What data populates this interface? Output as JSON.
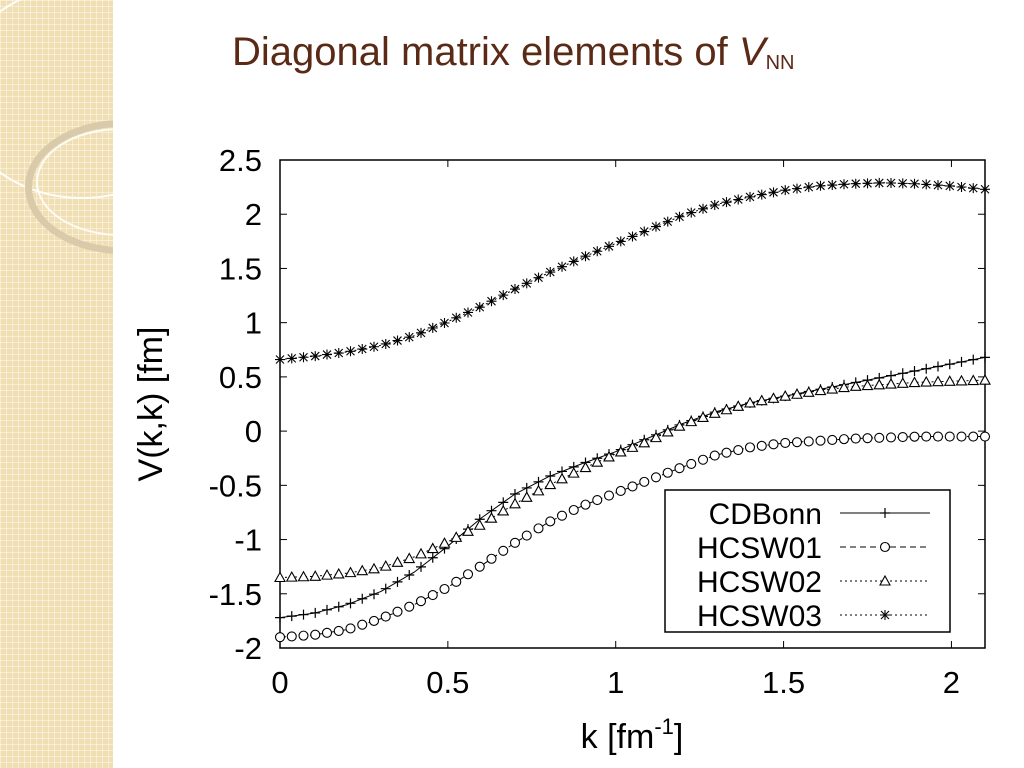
{
  "slide": {
    "title_prefix": "Diagonal matrix elements of ",
    "title_var": "V",
    "title_sub": "NN"
  },
  "chart_data": {
    "type": "line",
    "xlabel_main": "k [fm",
    "xlabel_sup": "-1",
    "xlabel_end": "]",
    "ylabel": "V(k,k) [fm]",
    "xlim": [
      0,
      2.1
    ],
    "ylim": [
      -2,
      2.5
    ],
    "xticks": [
      0,
      0.5,
      1,
      1.5,
      2
    ],
    "xtick_labels": [
      "0",
      "0.5",
      "1",
      "1.5",
      "2"
    ],
    "yticks": [
      2.5,
      2,
      1.5,
      1,
      0.5,
      0,
      -0.5,
      -1,
      -1.5,
      -2
    ],
    "ytick_labels": [
      "2.5",
      "2",
      "1.5",
      "1",
      "0.5",
      "0",
      "-0.5",
      "-1",
      "-1.5",
      "-2"
    ],
    "legend_position": "bottom-right",
    "series": [
      {
        "name": "CDBonn",
        "marker": "plus",
        "line": "solid",
        "x": [
          0,
          0.1,
          0.2,
          0.3,
          0.4,
          0.5,
          0.6,
          0.7,
          0.8,
          0.9,
          1.0,
          1.1,
          1.2,
          1.3,
          1.4,
          1.5,
          1.6,
          1.7,
          1.8,
          1.9,
          2.0,
          2.1
        ],
        "y": [
          -1.72,
          -1.68,
          -1.6,
          -1.48,
          -1.3,
          -1.06,
          -0.8,
          -0.58,
          -0.42,
          -0.3,
          -0.19,
          -0.06,
          0.07,
          0.18,
          0.26,
          0.32,
          0.38,
          0.44,
          0.5,
          0.56,
          0.62,
          0.68
        ]
      },
      {
        "name": "HCSW01",
        "marker": "circle",
        "line": "dashed",
        "x": [
          0,
          0.1,
          0.2,
          0.3,
          0.4,
          0.5,
          0.6,
          0.7,
          0.8,
          0.9,
          1.0,
          1.1,
          1.2,
          1.3,
          1.4,
          1.5,
          1.6,
          1.7,
          1.8,
          1.9,
          2.0,
          2.1
        ],
        "y": [
          -1.9,
          -1.88,
          -1.83,
          -1.73,
          -1.6,
          -1.44,
          -1.24,
          -1.03,
          -0.84,
          -0.69,
          -0.57,
          -0.45,
          -0.33,
          -0.22,
          -0.15,
          -0.11,
          -0.09,
          -0.07,
          -0.06,
          -0.05,
          -0.05,
          -0.05
        ]
      },
      {
        "name": "HCSW02",
        "marker": "triangle",
        "line": "dotted",
        "x": [
          0,
          0.1,
          0.2,
          0.3,
          0.4,
          0.5,
          0.6,
          0.7,
          0.8,
          0.9,
          1.0,
          1.1,
          1.2,
          1.3,
          1.4,
          1.5,
          1.6,
          1.7,
          1.8,
          1.9,
          2.0,
          2.1
        ],
        "y": [
          -1.35,
          -1.34,
          -1.31,
          -1.26,
          -1.16,
          -1.02,
          -0.86,
          -0.67,
          -0.5,
          -0.35,
          -0.21,
          -0.09,
          0.06,
          0.17,
          0.26,
          0.32,
          0.37,
          0.41,
          0.43,
          0.45,
          0.46,
          0.47
        ]
      },
      {
        "name": "HCSW03",
        "marker": "star",
        "line": "dotted",
        "x": [
          0,
          0.1,
          0.2,
          0.3,
          0.4,
          0.5,
          0.6,
          0.7,
          0.8,
          0.9,
          1.0,
          1.1,
          1.2,
          1.3,
          1.4,
          1.5,
          1.6,
          1.7,
          1.8,
          1.9,
          2.0,
          2.1
        ],
        "y": [
          0.66,
          0.69,
          0.73,
          0.79,
          0.88,
          1.01,
          1.15,
          1.31,
          1.46,
          1.6,
          1.73,
          1.86,
          1.99,
          2.09,
          2.16,
          2.22,
          2.26,
          2.28,
          2.29,
          2.28,
          2.26,
          2.23
        ]
      }
    ]
  },
  "colors": {
    "title": "#5a2a16",
    "panel": "#f1dfb4",
    "plot": "#000000"
  }
}
